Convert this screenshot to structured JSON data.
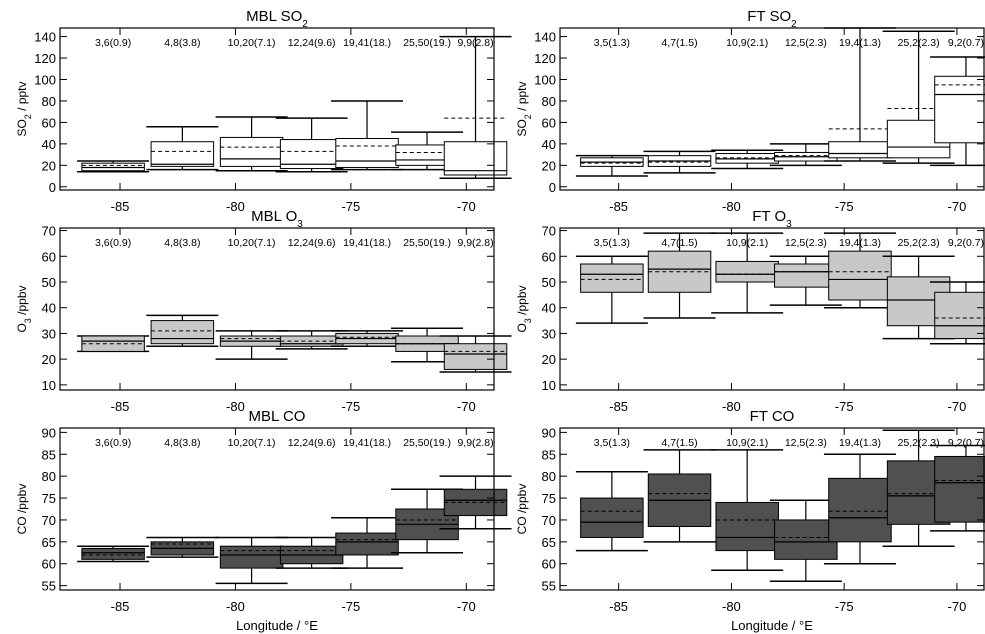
{
  "chart_data": [
    {
      "type": "box",
      "title": "MBL SO₂",
      "ylabel": "SO₂ / pptv",
      "xlim": [
        -87.6,
        -68.8
      ],
      "ylim": [
        -3,
        148
      ],
      "yticks": [
        0,
        20,
        40,
        60,
        80,
        100,
        120,
        140
      ],
      "xticks": [
        -85,
        -80,
        -75,
        -70
      ],
      "baseline": -3,
      "fill": "#ffffff",
      "boxes": [
        {
          "x": -85.3,
          "label": "3,6(0.9)",
          "min": 14,
          "q1": 15,
          "median": 18,
          "mean": 20,
          "q3": 22,
          "max": 24
        },
        {
          "x": -82.3,
          "label": "4,8(3.8)",
          "min": 16,
          "q1": 19,
          "median": 21,
          "mean": 33,
          "q3": 42,
          "max": 56
        },
        {
          "x": -79.3,
          "label": "10,20(7.1)",
          "min": 15,
          "q1": 19,
          "median": 26,
          "mean": 37,
          "q3": 46,
          "max": 65
        },
        {
          "x": -76.7,
          "label": "12,24(9.6)",
          "min": 14,
          "q1": 17,
          "median": 21,
          "mean": 33,
          "q3": 44,
          "max": 64
        },
        {
          "x": -74.3,
          "label": "19,41(18.)",
          "min": 16,
          "q1": 18,
          "median": 24,
          "mean": 38,
          "q3": 45,
          "max": 80
        },
        {
          "x": -71.7,
          "label": "25,50(19.)",
          "min": 16,
          "q1": 20,
          "median": 25,
          "mean": 32,
          "q3": 39,
          "max": 51
        },
        {
          "x": -69.6,
          "label": "9,9(2.8)",
          "min": 8,
          "q1": 11,
          "median": 15,
          "mean": 64,
          "q3": 42,
          "max": 140
        }
      ]
    },
    {
      "type": "box",
      "title": "FT SO₂",
      "ylabel": "SO₂ / pptv",
      "xlim": [
        -87.6,
        -68.8
      ],
      "ylim": [
        -3,
        148
      ],
      "yticks": [
        0,
        20,
        40,
        60,
        80,
        100,
        120,
        140
      ],
      "xticks": [
        -85,
        -80,
        -75,
        -70
      ],
      "baseline": -3,
      "fill": "#ffffff",
      "boxes": [
        {
          "x": -85.3,
          "label": "3,5(1.3)",
          "min": 10,
          "q1": 19,
          "median": 23,
          "mean": 22,
          "q3": 27,
          "max": 29
        },
        {
          "x": -82.3,
          "label": "4,7(1.5)",
          "min": 13,
          "q1": 19,
          "median": 24,
          "mean": 23,
          "q3": 29,
          "max": 33
        },
        {
          "x": -79.3,
          "label": "10,9(2.1)",
          "min": 17,
          "q1": 22,
          "median": 26,
          "mean": 27,
          "q3": 31,
          "max": 34
        },
        {
          "x": -76.7,
          "label": "12,5(2.3)",
          "min": 20,
          "q1": 24,
          "median": 28,
          "mean": 29,
          "q3": 32,
          "max": 40
        },
        {
          "x": -74.3,
          "label": "19,4(1.3)",
          "min": 24,
          "q1": 27,
          "median": 31,
          "mean": 54,
          "q3": 42,
          "max": 148
        },
        {
          "x": -71.7,
          "label": "25,2(2.3)",
          "min": 22,
          "q1": 27,
          "median": 37,
          "mean": 73,
          "q3": 62,
          "max": 145
        },
        {
          "x": -69.6,
          "label": "9,2(0.7)",
          "min": 20,
          "q1": 41,
          "median": 86,
          "mean": 95,
          "q3": 103,
          "max": 121
        }
      ]
    },
    {
      "type": "box",
      "title": "MBL O₃",
      "ylabel": "O₃ /ppbv",
      "xlim": [
        -87.6,
        -68.8
      ],
      "ylim": [
        8,
        71
      ],
      "yticks": [
        10,
        20,
        30,
        40,
        50,
        60,
        70
      ],
      "xticks": [
        -85,
        -80,
        -75,
        -70
      ],
      "fill": "#c8c8c8",
      "boxes": [
        {
          "x": -85.3,
          "label": "3,6(0.9)",
          "min": 23,
          "q1": 23,
          "median": 27,
          "mean": 26,
          "q3": 29,
          "max": 29
        },
        {
          "x": -82.3,
          "label": "4,8(3.8)",
          "min": 25,
          "q1": 26,
          "median": 28,
          "mean": 31,
          "q3": 35,
          "max": 37
        },
        {
          "x": -79.3,
          "label": "10,20(7.1)",
          "min": 20,
          "q1": 25,
          "median": 27,
          "mean": 28,
          "q3": 29,
          "max": 31
        },
        {
          "x": -76.7,
          "label": "12,24(9.6)",
          "min": 24,
          "q1": 25,
          "median": 26,
          "mean": 27,
          "q3": 29,
          "max": 31
        },
        {
          "x": -74.3,
          "label": "19,41(18.)",
          "min": 25,
          "q1": 26,
          "median": 28,
          "mean": 28.5,
          "q3": 30,
          "max": 31
        },
        {
          "x": -71.7,
          "label": "25,50(19.)",
          "min": 19,
          "q1": 23,
          "median": 26,
          "mean": 26,
          "q3": 29,
          "max": 32
        },
        {
          "x": -69.6,
          "label": "9,9(2.8)",
          "min": 15,
          "q1": 16,
          "median": 22,
          "mean": 23,
          "q3": 26,
          "max": 29
        }
      ]
    },
    {
      "type": "box",
      "title": "FT O₃",
      "ylabel": "O₃ /ppbv",
      "xlim": [
        -87.6,
        -68.8
      ],
      "ylim": [
        8,
        71
      ],
      "yticks": [
        10,
        20,
        30,
        40,
        50,
        60,
        70
      ],
      "xticks": [
        -85,
        -80,
        -75,
        -70
      ],
      "fill": "#c8c8c8",
      "boxes": [
        {
          "x": -85.3,
          "label": "3,5(1.3)",
          "min": 34,
          "q1": 46,
          "median": 53,
          "mean": 51,
          "q3": 57,
          "max": 60
        },
        {
          "x": -82.3,
          "label": "4,7(1.5)",
          "min": 36,
          "q1": 46,
          "median": 55,
          "mean": 54,
          "q3": 62,
          "max": 69
        },
        {
          "x": -79.3,
          "label": "10,9(2.1)",
          "min": 38,
          "q1": 50,
          "median": 53,
          "mean": 53,
          "q3": 58,
          "max": 69
        },
        {
          "x": -76.7,
          "label": "12,5(2.3)",
          "min": 41,
          "q1": 48,
          "median": 54,
          "mean": 54,
          "q3": 57,
          "max": 60
        },
        {
          "x": -74.3,
          "label": "19,4(1.3)",
          "min": 40,
          "q1": 43,
          "median": 51,
          "mean": 54,
          "q3": 62,
          "max": 69
        },
        {
          "x": -71.7,
          "label": "25,2(2.3)",
          "min": 28,
          "q1": 33,
          "median": 43,
          "mean": 43,
          "q3": 52,
          "max": 60
        },
        {
          "x": -69.6,
          "label": "9,2(0.7)",
          "min": 26,
          "q1": 28,
          "median": 33,
          "mean": 36,
          "q3": 46,
          "max": 50
        }
      ]
    },
    {
      "type": "box",
      "title": "MBL CO",
      "ylabel": "CO /ppbv",
      "xlabel": "Longitude / °E",
      "xlim": [
        -87.6,
        -68.8
      ],
      "ylim": [
        54,
        91
      ],
      "yticks": [
        55,
        60,
        65,
        70,
        75,
        80,
        85,
        90
      ],
      "xticks": [
        -85,
        -80,
        -75,
        -70
      ],
      "fill": "#505050",
      "boxes": [
        {
          "x": -85.3,
          "label": "3,6(0.9)",
          "min": 60.5,
          "q1": 61,
          "median": 62.5,
          "mean": 62,
          "q3": 63.5,
          "max": 64
        },
        {
          "x": -82.3,
          "label": "4,8(3.8)",
          "min": 61.5,
          "q1": 62,
          "median": 63.5,
          "mean": 64.5,
          "q3": 65,
          "max": 66
        },
        {
          "x": -79.3,
          "label": "10,20(7.1)",
          "min": 55.5,
          "q1": 59,
          "median": 62,
          "mean": 63,
          "q3": 64,
          "max": 66
        },
        {
          "x": -76.7,
          "label": "12,24(9.6)",
          "min": 59,
          "q1": 60,
          "median": 62,
          "mean": 63,
          "q3": 64,
          "max": 66
        },
        {
          "x": -74.3,
          "label": "19,41(18.)",
          "min": 59,
          "q1": 62,
          "median": 65,
          "mean": 65.5,
          "q3": 67,
          "max": 70.5
        },
        {
          "x": -71.7,
          "label": "25,50(19.)",
          "min": 62.5,
          "q1": 65.5,
          "median": 69,
          "mean": 70,
          "q3": 72.5,
          "max": 77
        },
        {
          "x": -69.6,
          "label": "9,9(2.8)",
          "min": 68,
          "q1": 71,
          "median": 74.5,
          "mean": 74,
          "q3": 77,
          "max": 80
        }
      ]
    },
    {
      "type": "box",
      "title": "FT CO",
      "ylabel": "CO /ppbv",
      "xlabel": "Longitude / °E",
      "xlim": [
        -87.6,
        -68.8
      ],
      "ylim": [
        54,
        91
      ],
      "yticks": [
        55,
        60,
        65,
        70,
        75,
        80,
        85,
        90
      ],
      "xticks": [
        -85,
        -80,
        -75,
        -70
      ],
      "fill": "#505050",
      "boxes": [
        {
          "x": -85.3,
          "label": "3,5(1.3)",
          "min": 63,
          "q1": 66,
          "median": 69.5,
          "mean": 72,
          "q3": 75,
          "max": 81
        },
        {
          "x": -82.3,
          "label": "4,7(1.5)",
          "min": 65,
          "q1": 68.5,
          "median": 74.5,
          "mean": 76,
          "q3": 80.5,
          "max": 86
        },
        {
          "x": -79.3,
          "label": "10,9(2.1)",
          "min": 58.5,
          "q1": 63,
          "median": 66,
          "mean": 70,
          "q3": 74,
          "max": 86
        },
        {
          "x": -76.7,
          "label": "12,5(2.3)",
          "min": 56,
          "q1": 61,
          "median": 65,
          "mean": 66,
          "q3": 70,
          "max": 74.5
        },
        {
          "x": -74.3,
          "label": "19,4(1.3)",
          "min": 60,
          "q1": 65,
          "median": 70.5,
          "mean": 72,
          "q3": 79.5,
          "max": 85
        },
        {
          "x": -71.7,
          "label": "25,2(2.3)",
          "min": 64,
          "q1": 69,
          "median": 75.5,
          "mean": 76,
          "q3": 83.5,
          "max": 90.5
        },
        {
          "x": -69.6,
          "label": "9,2(0.7)",
          "min": 67.5,
          "q1": 69.5,
          "median": 78.5,
          "mean": 79,
          "q3": 84.5,
          "max": 87
        }
      ]
    }
  ]
}
